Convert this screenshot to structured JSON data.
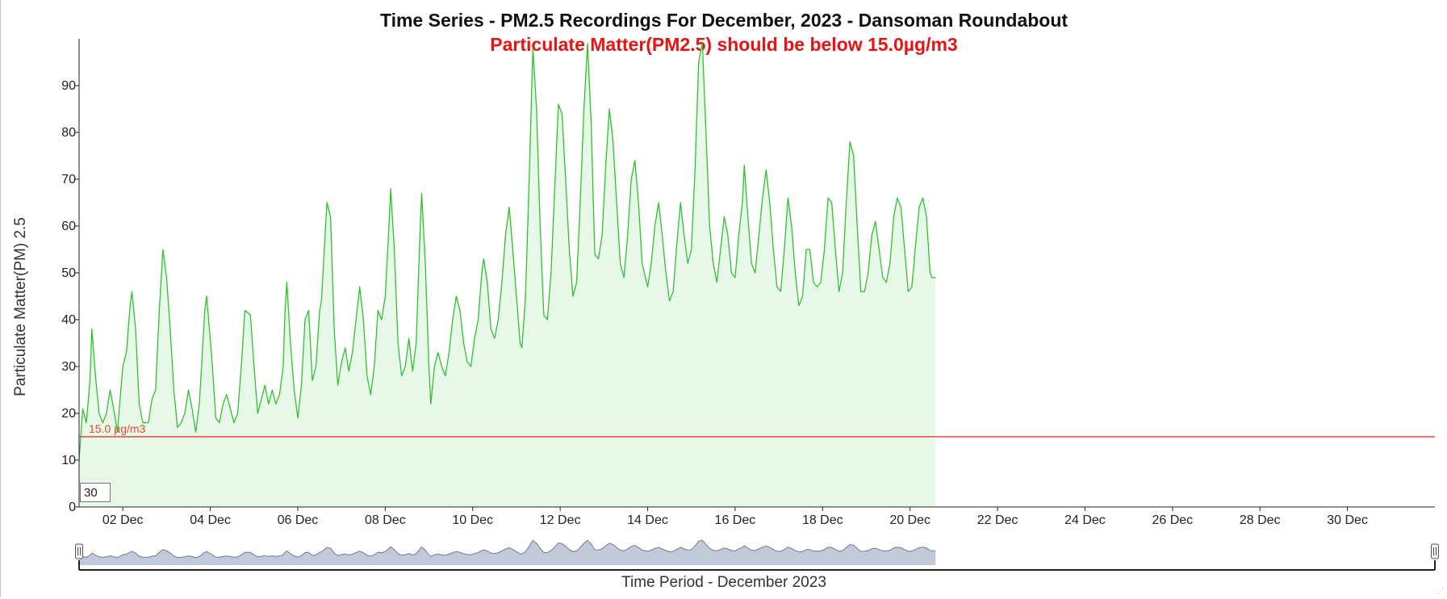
{
  "colors": {
    "series_line": "#2ec22e",
    "series_fill": "#e8f8e8",
    "threshold": "#e0482f",
    "subtitle": "#ee1111",
    "navigator_fill": "#c2c9d8",
    "navigator_line": "#6d7b9a",
    "axis": "#222222"
  },
  "icons": {
    "left_handle": "range-handle-left-icon",
    "right_handle": "range-handle-right-icon",
    "resize": "resize-grip-icon"
  },
  "window_input": {
    "value": "30"
  },
  "resize_glyph": "⋰",
  "chart_data": {
    "type": "area",
    "title": "Time Series - PM2.5 Recordings For December, 2023 - Dansoman Roundabout",
    "subtitle": "Particulate Matter(PM2.5) should be below 15.0µg/m3",
    "xlabel": "Time Period - December 2023",
    "ylabel": "Particulate Matter(PM) 2.5",
    "xlim": [
      "2023-12-01T00:00",
      "2024-01-01T00:00"
    ],
    "ylim": [
      0,
      100
    ],
    "y_ticks": [
      0,
      10,
      20,
      30,
      40,
      50,
      60,
      70,
      80,
      90
    ],
    "x_ticks": [
      "02 Dec",
      "04 Dec",
      "06 Dec",
      "08 Dec",
      "10 Dec",
      "12 Dec",
      "14 Dec",
      "16 Dec",
      "18 Dec",
      "20 Dec",
      "22 Dec",
      "24 Dec",
      "26 Dec",
      "28 Dec",
      "30 Dec"
    ],
    "x_tick_dates": [
      "2023-12-02",
      "2023-12-04",
      "2023-12-06",
      "2023-12-08",
      "2023-12-10",
      "2023-12-12",
      "2023-12-14",
      "2023-12-16",
      "2023-12-18",
      "2023-12-20",
      "2023-12-22",
      "2023-12-24",
      "2023-12-26",
      "2023-12-28",
      "2023-12-30"
    ],
    "grid": false,
    "threshold": {
      "value": 15.0,
      "label": "15.0 µg/m3"
    },
    "series": [
      {
        "name": "PM2.5",
        "points": [
          [
            "2023-12-01T00:00",
            10
          ],
          [
            "2023-12-01T02:00",
            21
          ],
          [
            "2023-12-01T04:00",
            18
          ],
          [
            "2023-12-01T06:00",
            27
          ],
          [
            "2023-12-01T07:00",
            38
          ],
          [
            "2023-12-01T09:00",
            28
          ],
          [
            "2023-12-01T11:00",
            20
          ],
          [
            "2023-12-01T13:00",
            18
          ],
          [
            "2023-12-01T15:00",
            20
          ],
          [
            "2023-12-01T17:00",
            25
          ],
          [
            "2023-12-01T19:00",
            21
          ],
          [
            "2023-12-01T21:00",
            16
          ],
          [
            "2023-12-02T00:00",
            30
          ],
          [
            "2023-12-02T02:00",
            33
          ],
          [
            "2023-12-02T04:00",
            43
          ],
          [
            "2023-12-02T05:00",
            46
          ],
          [
            "2023-12-02T07:00",
            38
          ],
          [
            "2023-12-02T09:00",
            22
          ],
          [
            "2023-12-02T11:00",
            18
          ],
          [
            "2023-12-02T14:00",
            18
          ],
          [
            "2023-12-02T16:00",
            23
          ],
          [
            "2023-12-02T18:00",
            25
          ],
          [
            "2023-12-02T20:00",
            42
          ],
          [
            "2023-12-02T22:00",
            55
          ],
          [
            "2023-12-03T00:00",
            49
          ],
          [
            "2023-12-03T02:00",
            38
          ],
          [
            "2023-12-03T04:00",
            25
          ],
          [
            "2023-12-03T06:00",
            17
          ],
          [
            "2023-12-03T08:00",
            18
          ],
          [
            "2023-12-03T10:00",
            20
          ],
          [
            "2023-12-03T12:00",
            25
          ],
          [
            "2023-12-03T14:00",
            21
          ],
          [
            "2023-12-03T16:00",
            16
          ],
          [
            "2023-12-03T18:00",
            22
          ],
          [
            "2023-12-03T21:00",
            42
          ],
          [
            "2023-12-03T22:00",
            45
          ],
          [
            "2023-12-04T01:00",
            31
          ],
          [
            "2023-12-04T03:00",
            19
          ],
          [
            "2023-12-04T05:00",
            18
          ],
          [
            "2023-12-04T07:00",
            22
          ],
          [
            "2023-12-04T09:00",
            24
          ],
          [
            "2023-12-04T11:00",
            21
          ],
          [
            "2023-12-04T13:00",
            18
          ],
          [
            "2023-12-04T15:00",
            20
          ],
          [
            "2023-12-04T17:00",
            30
          ],
          [
            "2023-12-04T19:00",
            42
          ],
          [
            "2023-12-04T22:00",
            41
          ],
          [
            "2023-12-05T00:00",
            30
          ],
          [
            "2023-12-05T02:00",
            20
          ],
          [
            "2023-12-05T04:00",
            23
          ],
          [
            "2023-12-05T06:00",
            26
          ],
          [
            "2023-12-05T08:00",
            22
          ],
          [
            "2023-12-05T10:00",
            25
          ],
          [
            "2023-12-05T12:00",
            22
          ],
          [
            "2023-12-05T14:00",
            24
          ],
          [
            "2023-12-05T16:00",
            30
          ],
          [
            "2023-12-05T17:00",
            42
          ],
          [
            "2023-12-05T18:00",
            48
          ],
          [
            "2023-12-05T20:00",
            35
          ],
          [
            "2023-12-05T22:00",
            25
          ],
          [
            "2023-12-06T00:00",
            19
          ],
          [
            "2023-12-06T02:00",
            26
          ],
          [
            "2023-12-06T04:00",
            40
          ],
          [
            "2023-12-06T06:00",
            42
          ],
          [
            "2023-12-06T08:00",
            27
          ],
          [
            "2023-12-06T10:00",
            30
          ],
          [
            "2023-12-06T12:00",
            42
          ],
          [
            "2023-12-06T13:00",
            44
          ],
          [
            "2023-12-06T15:00",
            58
          ],
          [
            "2023-12-06T16:00",
            65
          ],
          [
            "2023-12-06T18:00",
            62
          ],
          [
            "2023-12-06T20:00",
            38
          ],
          [
            "2023-12-06T22:00",
            26
          ],
          [
            "2023-12-07T00:00",
            31
          ],
          [
            "2023-12-07T02:00",
            34
          ],
          [
            "2023-12-07T04:00",
            29
          ],
          [
            "2023-12-07T06:00",
            33
          ],
          [
            "2023-12-07T08:00",
            40
          ],
          [
            "2023-12-07T10:00",
            47
          ],
          [
            "2023-12-07T12:00",
            40
          ],
          [
            "2023-12-07T14:00",
            28
          ],
          [
            "2023-12-07T16:00",
            24
          ],
          [
            "2023-12-07T18:00",
            30
          ],
          [
            "2023-12-07T20:00",
            42
          ],
          [
            "2023-12-07T22:00",
            40
          ],
          [
            "2023-12-08T00:00",
            45
          ],
          [
            "2023-12-08T02:00",
            60
          ],
          [
            "2023-12-08T03:00",
            68
          ],
          [
            "2023-12-08T05:00",
            55
          ],
          [
            "2023-12-08T07:00",
            35
          ],
          [
            "2023-12-08T09:00",
            28
          ],
          [
            "2023-12-08T11:00",
            30
          ],
          [
            "2023-12-08T13:00",
            36
          ],
          [
            "2023-12-08T15:00",
            29
          ],
          [
            "2023-12-08T17:00",
            35
          ],
          [
            "2023-12-08T19:00",
            58
          ],
          [
            "2023-12-08T20:00",
            67
          ],
          [
            "2023-12-08T22:00",
            52
          ],
          [
            "2023-12-09T00:00",
            30
          ],
          [
            "2023-12-09T01:00",
            22
          ],
          [
            "2023-12-09T03:00",
            30
          ],
          [
            "2023-12-09T05:00",
            33
          ],
          [
            "2023-12-09T07:00",
            30
          ],
          [
            "2023-12-09T09:00",
            28
          ],
          [
            "2023-12-09T11:00",
            33
          ],
          [
            "2023-12-09T13:00",
            40
          ],
          [
            "2023-12-09T15:00",
            45
          ],
          [
            "2023-12-09T17:00",
            42
          ],
          [
            "2023-12-09T19:00",
            35
          ],
          [
            "2023-12-09T21:00",
            31
          ],
          [
            "2023-12-09T23:00",
            30
          ],
          [
            "2023-12-10T01:00",
            36
          ],
          [
            "2023-12-10T03:00",
            40
          ],
          [
            "2023-12-10T05:00",
            50
          ],
          [
            "2023-12-10T06:00",
            53
          ],
          [
            "2023-12-10T08:00",
            48
          ],
          [
            "2023-12-10T10:00",
            38
          ],
          [
            "2023-12-10T12:00",
            36
          ],
          [
            "2023-12-10T14:00",
            40
          ],
          [
            "2023-12-10T16:00",
            48
          ],
          [
            "2023-12-10T18:00",
            58
          ],
          [
            "2023-12-10T20:00",
            64
          ],
          [
            "2023-12-10T22:00",
            55
          ],
          [
            "2023-12-11T00:00",
            45
          ],
          [
            "2023-12-11T02:00",
            35
          ],
          [
            "2023-12-11T03:00",
            34
          ],
          [
            "2023-12-11T05:00",
            45
          ],
          [
            "2023-12-11T07:00",
            70
          ],
          [
            "2023-12-11T09:00",
            98
          ],
          [
            "2023-12-11T11:00",
            85
          ],
          [
            "2023-12-11T13:00",
            60
          ],
          [
            "2023-12-11T15:00",
            41
          ],
          [
            "2023-12-11T17:00",
            40
          ],
          [
            "2023-12-11T19:00",
            50
          ],
          [
            "2023-12-11T21:00",
            68
          ],
          [
            "2023-12-11T23:00",
            86
          ],
          [
            "2023-12-12T01:00",
            84
          ],
          [
            "2023-12-12T03:00",
            70
          ],
          [
            "2023-12-12T05:00",
            55
          ],
          [
            "2023-12-12T07:00",
            45
          ],
          [
            "2023-12-12T09:00",
            48
          ],
          [
            "2023-12-12T11:00",
            65
          ],
          [
            "2023-12-12T13:00",
            85
          ],
          [
            "2023-12-12T15:00",
            99
          ],
          [
            "2023-12-12T17:00",
            82
          ],
          [
            "2023-12-12T19:00",
            54
          ],
          [
            "2023-12-12T21:00",
            53
          ],
          [
            "2023-12-12T23:00",
            58
          ],
          [
            "2023-12-13T01:00",
            73
          ],
          [
            "2023-12-13T03:00",
            85
          ],
          [
            "2023-12-13T05:00",
            78
          ],
          [
            "2023-12-13T07:00",
            65
          ],
          [
            "2023-12-13T09:00",
            52
          ],
          [
            "2023-12-13T11:00",
            49
          ],
          [
            "2023-12-13T13:00",
            58
          ],
          [
            "2023-12-13T15:00",
            70
          ],
          [
            "2023-12-13T17:00",
            74
          ],
          [
            "2023-12-13T19:00",
            65
          ],
          [
            "2023-12-13T21:00",
            52
          ],
          [
            "2023-12-14T00:00",
            47
          ],
          [
            "2023-12-14T02:00",
            52
          ],
          [
            "2023-12-14T04:00",
            60
          ],
          [
            "2023-12-14T06:00",
            65
          ],
          [
            "2023-12-14T08:00",
            58
          ],
          [
            "2023-12-14T10:00",
            50
          ],
          [
            "2023-12-14T12:00",
            44
          ],
          [
            "2023-12-14T14:00",
            46
          ],
          [
            "2023-12-14T16:00",
            56
          ],
          [
            "2023-12-14T18:00",
            65
          ],
          [
            "2023-12-14T20:00",
            58
          ],
          [
            "2023-12-14T22:00",
            52
          ],
          [
            "2023-12-15T00:00",
            55
          ],
          [
            "2023-12-15T02:00",
            72
          ],
          [
            "2023-12-15T04:00",
            95
          ],
          [
            "2023-12-15T06:00",
            99
          ],
          [
            "2023-12-15T08:00",
            80
          ],
          [
            "2023-12-15T10:00",
            60
          ],
          [
            "2023-12-15T12:00",
            52
          ],
          [
            "2023-12-15T14:00",
            48
          ],
          [
            "2023-12-15T16:00",
            55
          ],
          [
            "2023-12-15T18:00",
            62
          ],
          [
            "2023-12-15T20:00",
            58
          ],
          [
            "2023-12-15T22:00",
            50
          ],
          [
            "2023-12-16T00:00",
            49
          ],
          [
            "2023-12-16T02:00",
            58
          ],
          [
            "2023-12-16T04:00",
            65
          ],
          [
            "2023-12-16T05:00",
            73
          ],
          [
            "2023-12-16T07:00",
            62
          ],
          [
            "2023-12-16T09:00",
            52
          ],
          [
            "2023-12-16T11:00",
            50
          ],
          [
            "2023-12-16T13:00",
            58
          ],
          [
            "2023-12-16T15:00",
            66
          ],
          [
            "2023-12-16T17:00",
            72
          ],
          [
            "2023-12-16T19:00",
            65
          ],
          [
            "2023-12-16T21:00",
            55
          ],
          [
            "2023-12-16T23:00",
            47
          ],
          [
            "2023-12-17T01:00",
            46
          ],
          [
            "2023-12-17T03:00",
            55
          ],
          [
            "2023-12-17T05:00",
            66
          ],
          [
            "2023-12-17T07:00",
            60
          ],
          [
            "2023-12-17T09:00",
            50
          ],
          [
            "2023-12-17T11:00",
            43
          ],
          [
            "2023-12-17T13:00",
            45
          ],
          [
            "2023-12-17T15:00",
            55
          ],
          [
            "2023-12-17T17:00",
            55
          ],
          [
            "2023-12-17T19:00",
            48
          ],
          [
            "2023-12-17T21:00",
            47
          ],
          [
            "2023-12-17T23:00",
            48
          ],
          [
            "2023-12-18T01:00",
            55
          ],
          [
            "2023-12-18T03:00",
            66
          ],
          [
            "2023-12-18T05:00",
            65
          ],
          [
            "2023-12-18T07:00",
            55
          ],
          [
            "2023-12-18T09:00",
            46
          ],
          [
            "2023-12-18T11:00",
            50
          ],
          [
            "2023-12-18T13:00",
            65
          ],
          [
            "2023-12-18T15:00",
            78
          ],
          [
            "2023-12-18T17:00",
            75
          ],
          [
            "2023-12-18T19:00",
            60
          ],
          [
            "2023-12-18T21:00",
            46
          ],
          [
            "2023-12-18T23:00",
            46
          ],
          [
            "2023-12-19T01:00",
            50
          ],
          [
            "2023-12-19T03:00",
            58
          ],
          [
            "2023-12-19T05:00",
            61
          ],
          [
            "2023-12-19T07:00",
            55
          ],
          [
            "2023-12-19T09:00",
            49
          ],
          [
            "2023-12-19T11:00",
            48
          ],
          [
            "2023-12-19T13:00",
            52
          ],
          [
            "2023-12-19T15:00",
            62
          ],
          [
            "2023-12-19T17:00",
            66
          ],
          [
            "2023-12-19T19:00",
            64
          ],
          [
            "2023-12-19T21:00",
            55
          ],
          [
            "2023-12-19T23:00",
            46
          ],
          [
            "2023-12-20T01:00",
            47
          ],
          [
            "2023-12-20T03:00",
            56
          ],
          [
            "2023-12-20T05:00",
            64
          ],
          [
            "2023-12-20T07:00",
            66
          ],
          [
            "2023-12-20T09:00",
            62
          ],
          [
            "2023-12-20T11:00",
            50
          ],
          [
            "2023-12-20T12:00",
            49
          ],
          [
            "2023-12-20T14:00",
            49
          ]
        ]
      }
    ]
  }
}
